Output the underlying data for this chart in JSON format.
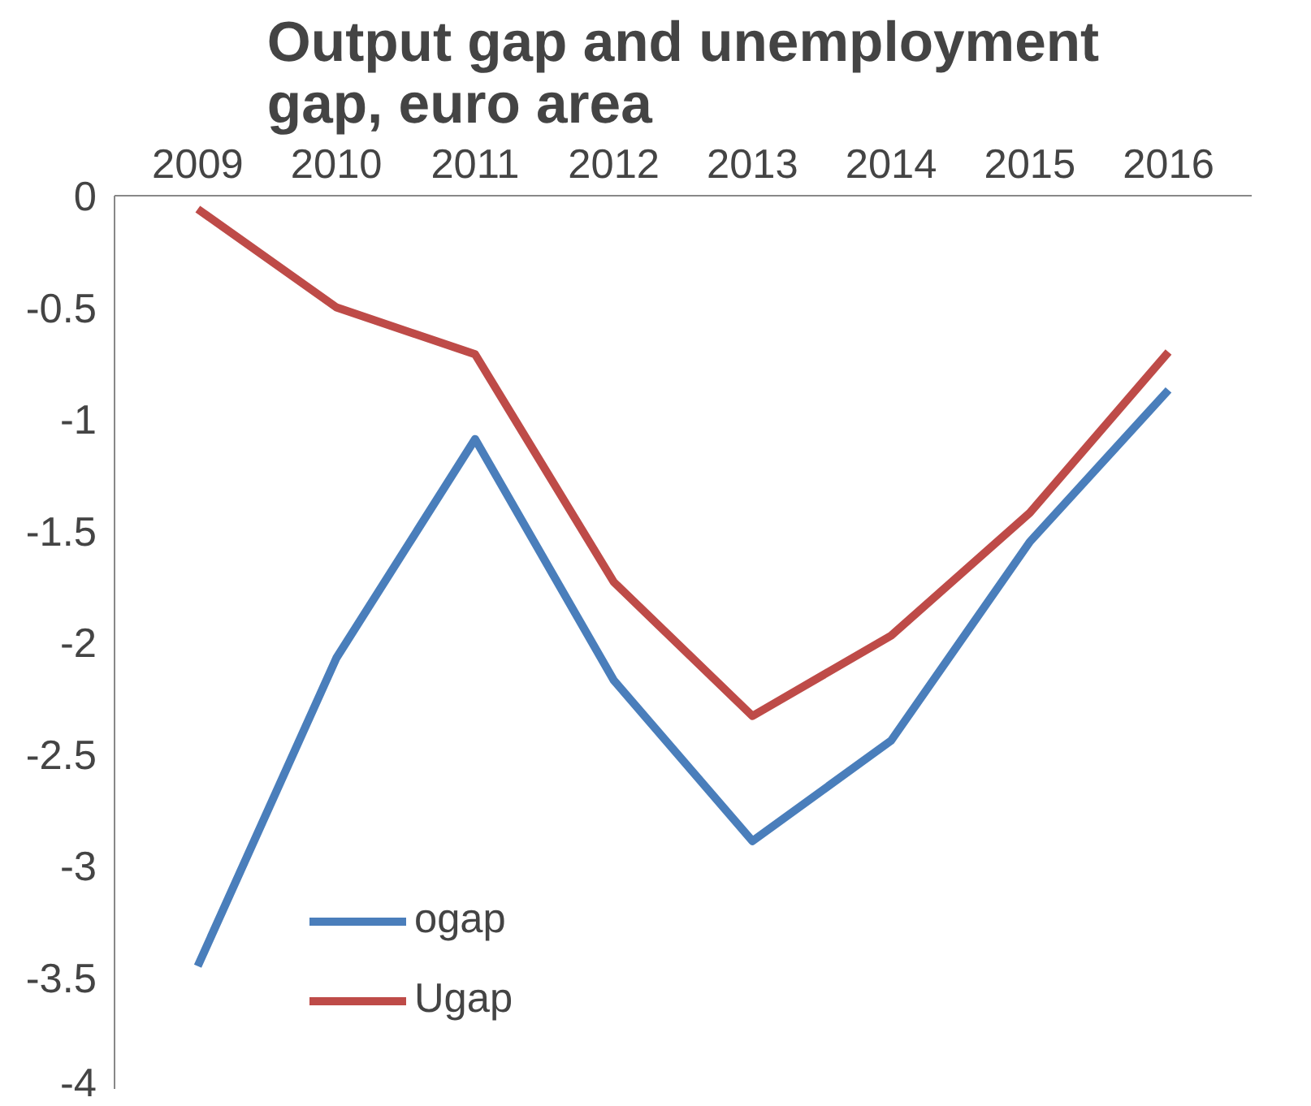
{
  "chart_data": {
    "type": "line",
    "title": "Output gap and unemployment\ngap, euro area",
    "categories": [
      "2009",
      "2010",
      "2011",
      "2012",
      "2013",
      "2014",
      "2015",
      "2016"
    ],
    "series": [
      {
        "name": "ogap",
        "color": "#4a7ebb",
        "values": [
          -3.45,
          -2.07,
          -1.09,
          -2.17,
          -2.89,
          -2.44,
          -1.55,
          -0.87
        ]
      },
      {
        "name": "Ugap",
        "color": "#be4b48",
        "values": [
          -0.06,
          -0.5,
          -0.71,
          -1.73,
          -2.33,
          -1.97,
          -1.42,
          -0.7
        ]
      }
    ],
    "ylim": [
      -4,
      0
    ],
    "yticks": [
      0,
      -0.5,
      -1,
      -1.5,
      -2,
      -2.5,
      -3,
      -3.5,
      -4
    ],
    "grid": false,
    "legend": "bottom left",
    "line_style": "solid",
    "marker": "none"
  }
}
